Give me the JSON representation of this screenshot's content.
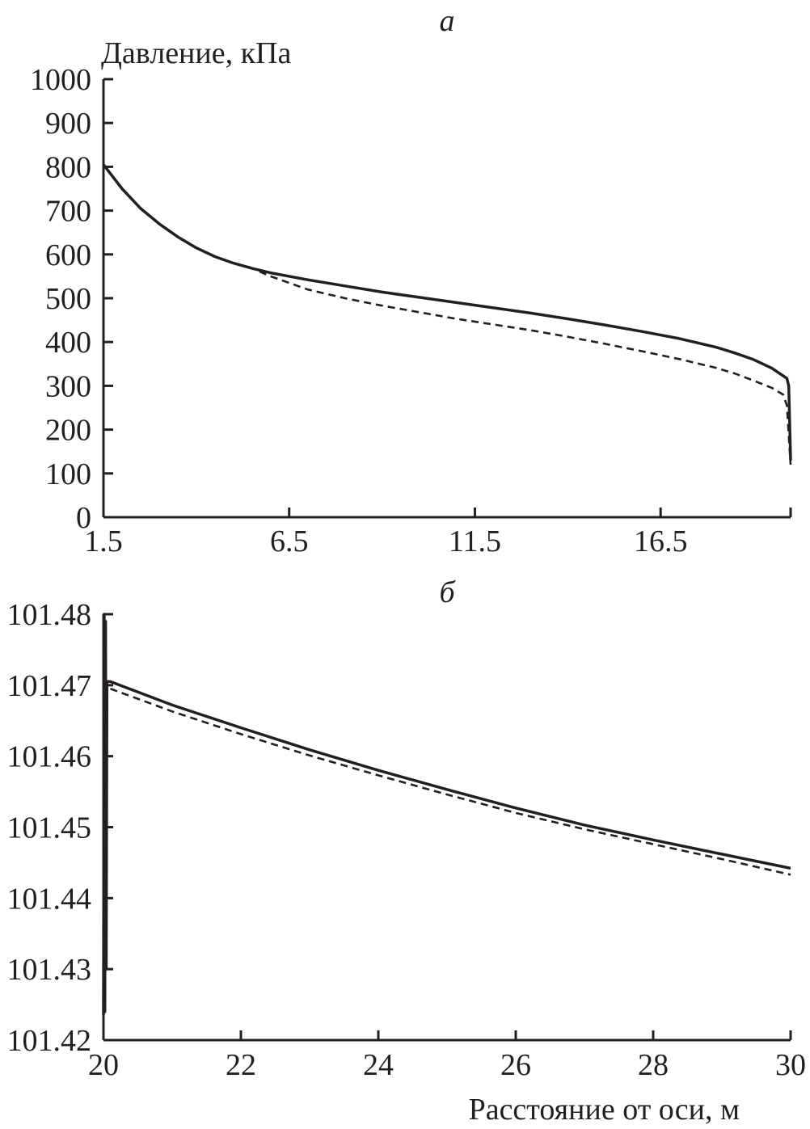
{
  "chart_data": [
    {
      "type": "line",
      "panel_label": "а",
      "ylabel": "Давление, кПа",
      "xlabel": "",
      "xlim": [
        1.5,
        20.0
      ],
      "ylim": [
        0,
        1000
      ],
      "x_ticks": [
        "1.5",
        "6.5",
        "11.5",
        "16.5"
      ],
      "x_tick_values": [
        1.5,
        6.5,
        11.5,
        16.5
      ],
      "y_ticks": [
        "1000",
        "900",
        "800",
        "700",
        "600",
        "500",
        "400",
        "300",
        "200",
        "100",
        "0"
      ],
      "y_tick_values": [
        1000,
        900,
        800,
        700,
        600,
        500,
        400,
        300,
        200,
        100,
        0
      ],
      "series": [
        {
          "style": "solid",
          "x": [
            1.5,
            2.0,
            2.5,
            3.0,
            3.5,
            4.0,
            4.5,
            5.0,
            5.5,
            6.0,
            7.0,
            8.0,
            9.0,
            10.0,
            11.0,
            12.0,
            13.0,
            14.0,
            15.0,
            16.0,
            17.0,
            18.0,
            18.5,
            19.0,
            19.5,
            19.9,
            19.95,
            20.0
          ],
          "y": [
            805,
            750,
            705,
            670,
            640,
            615,
            595,
            580,
            568,
            558,
            542,
            528,
            514,
            502,
            490,
            478,
            466,
            453,
            439,
            424,
            408,
            388,
            375,
            360,
            340,
            317,
            300,
            130
          ]
        },
        {
          "style": "dashed",
          "x": [
            5.4,
            6.0,
            7.0,
            8.0,
            9.0,
            10.0,
            11.0,
            12.0,
            13.0,
            14.0,
            15.0,
            16.0,
            17.0,
            18.0,
            18.5,
            19.0,
            19.5,
            19.8,
            19.9,
            20.0
          ],
          "y": [
            572,
            550,
            520,
            500,
            483,
            468,
            453,
            440,
            427,
            412,
            396,
            379,
            361,
            341,
            328,
            312,
            295,
            280,
            255,
            120
          ]
        }
      ]
    },
    {
      "type": "line",
      "panel_label": "б",
      "xlabel": "Расстояние от оси, м",
      "ylabel": "",
      "xlim": [
        20,
        30
      ],
      "ylim": [
        101.42,
        101.48
      ],
      "x_ticks": [
        "20",
        "22",
        "24",
        "26",
        "28",
        "30"
      ],
      "x_tick_values": [
        20,
        22,
        24,
        26,
        28,
        30
      ],
      "y_ticks": [
        "101.48",
        "101.47",
        "101.46",
        "101.45",
        "101.44",
        "101.43",
        "101.42"
      ],
      "y_tick_values": [
        101.48,
        101.47,
        101.46,
        101.45,
        101.44,
        101.43,
        101.42
      ],
      "series": [
        {
          "style": "solid",
          "x": [
            20.0,
            20.01,
            20.02,
            20.03,
            20.04,
            20.05,
            20.1,
            21,
            22,
            23,
            24,
            25,
            26,
            27,
            28,
            29,
            30
          ],
          "y": [
            101.4235,
            101.48,
            101.424,
            101.479,
            101.43,
            101.4705,
            101.4705,
            101.4672,
            101.464,
            101.4609,
            101.458,
            101.4553,
            101.4527,
            101.4503,
            101.4482,
            101.4462,
            101.4442
          ]
        },
        {
          "style": "dashed",
          "x": [
            20.1,
            21,
            22,
            23,
            24,
            25,
            26,
            27,
            28,
            29,
            30
          ],
          "y": [
            101.4695,
            101.4663,
            101.4631,
            101.4601,
            101.4573,
            101.4546,
            101.452,
            101.4497,
            101.4476,
            101.4455,
            101.4433
          ]
        }
      ]
    }
  ]
}
